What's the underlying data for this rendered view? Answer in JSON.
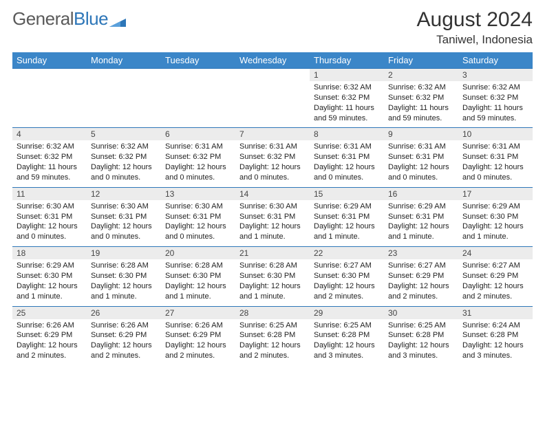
{
  "logo": {
    "part1": "General",
    "part2": "Blue"
  },
  "title": "August 2024",
  "location": "Taniwel, Indonesia",
  "weekdays": [
    "Sunday",
    "Monday",
    "Tuesday",
    "Wednesday",
    "Thursday",
    "Friday",
    "Saturday"
  ],
  "colors": {
    "header_bg": "#3b86c8",
    "header_text": "#ffffff",
    "daynum_bg": "#ececec",
    "rule": "#2d76b8",
    "logo_gray": "#5a5a5a",
    "logo_blue": "#2d76b8"
  },
  "weeks": [
    [
      {
        "empty": true
      },
      {
        "empty": true
      },
      {
        "empty": true
      },
      {
        "empty": true
      },
      {
        "day": "1",
        "sunrise": "Sunrise: 6:32 AM",
        "sunset": "Sunset: 6:32 PM",
        "daylight": "Daylight: 11 hours and 59 minutes."
      },
      {
        "day": "2",
        "sunrise": "Sunrise: 6:32 AM",
        "sunset": "Sunset: 6:32 PM",
        "daylight": "Daylight: 11 hours and 59 minutes."
      },
      {
        "day": "3",
        "sunrise": "Sunrise: 6:32 AM",
        "sunset": "Sunset: 6:32 PM",
        "daylight": "Daylight: 11 hours and 59 minutes."
      }
    ],
    [
      {
        "day": "4",
        "sunrise": "Sunrise: 6:32 AM",
        "sunset": "Sunset: 6:32 PM",
        "daylight": "Daylight: 11 hours and 59 minutes."
      },
      {
        "day": "5",
        "sunrise": "Sunrise: 6:32 AM",
        "sunset": "Sunset: 6:32 PM",
        "daylight": "Daylight: 12 hours and 0 minutes."
      },
      {
        "day": "6",
        "sunrise": "Sunrise: 6:31 AM",
        "sunset": "Sunset: 6:32 PM",
        "daylight": "Daylight: 12 hours and 0 minutes."
      },
      {
        "day": "7",
        "sunrise": "Sunrise: 6:31 AM",
        "sunset": "Sunset: 6:32 PM",
        "daylight": "Daylight: 12 hours and 0 minutes."
      },
      {
        "day": "8",
        "sunrise": "Sunrise: 6:31 AM",
        "sunset": "Sunset: 6:31 PM",
        "daylight": "Daylight: 12 hours and 0 minutes."
      },
      {
        "day": "9",
        "sunrise": "Sunrise: 6:31 AM",
        "sunset": "Sunset: 6:31 PM",
        "daylight": "Daylight: 12 hours and 0 minutes."
      },
      {
        "day": "10",
        "sunrise": "Sunrise: 6:31 AM",
        "sunset": "Sunset: 6:31 PM",
        "daylight": "Daylight: 12 hours and 0 minutes."
      }
    ],
    [
      {
        "day": "11",
        "sunrise": "Sunrise: 6:30 AM",
        "sunset": "Sunset: 6:31 PM",
        "daylight": "Daylight: 12 hours and 0 minutes."
      },
      {
        "day": "12",
        "sunrise": "Sunrise: 6:30 AM",
        "sunset": "Sunset: 6:31 PM",
        "daylight": "Daylight: 12 hours and 0 minutes."
      },
      {
        "day": "13",
        "sunrise": "Sunrise: 6:30 AM",
        "sunset": "Sunset: 6:31 PM",
        "daylight": "Daylight: 12 hours and 0 minutes."
      },
      {
        "day": "14",
        "sunrise": "Sunrise: 6:30 AM",
        "sunset": "Sunset: 6:31 PM",
        "daylight": "Daylight: 12 hours and 1 minute."
      },
      {
        "day": "15",
        "sunrise": "Sunrise: 6:29 AM",
        "sunset": "Sunset: 6:31 PM",
        "daylight": "Daylight: 12 hours and 1 minute."
      },
      {
        "day": "16",
        "sunrise": "Sunrise: 6:29 AM",
        "sunset": "Sunset: 6:31 PM",
        "daylight": "Daylight: 12 hours and 1 minute."
      },
      {
        "day": "17",
        "sunrise": "Sunrise: 6:29 AM",
        "sunset": "Sunset: 6:30 PM",
        "daylight": "Daylight: 12 hours and 1 minute."
      }
    ],
    [
      {
        "day": "18",
        "sunrise": "Sunrise: 6:29 AM",
        "sunset": "Sunset: 6:30 PM",
        "daylight": "Daylight: 12 hours and 1 minute."
      },
      {
        "day": "19",
        "sunrise": "Sunrise: 6:28 AM",
        "sunset": "Sunset: 6:30 PM",
        "daylight": "Daylight: 12 hours and 1 minute."
      },
      {
        "day": "20",
        "sunrise": "Sunrise: 6:28 AM",
        "sunset": "Sunset: 6:30 PM",
        "daylight": "Daylight: 12 hours and 1 minute."
      },
      {
        "day": "21",
        "sunrise": "Sunrise: 6:28 AM",
        "sunset": "Sunset: 6:30 PM",
        "daylight": "Daylight: 12 hours and 1 minute."
      },
      {
        "day": "22",
        "sunrise": "Sunrise: 6:27 AM",
        "sunset": "Sunset: 6:30 PM",
        "daylight": "Daylight: 12 hours and 2 minutes."
      },
      {
        "day": "23",
        "sunrise": "Sunrise: 6:27 AM",
        "sunset": "Sunset: 6:29 PM",
        "daylight": "Daylight: 12 hours and 2 minutes."
      },
      {
        "day": "24",
        "sunrise": "Sunrise: 6:27 AM",
        "sunset": "Sunset: 6:29 PM",
        "daylight": "Daylight: 12 hours and 2 minutes."
      }
    ],
    [
      {
        "day": "25",
        "sunrise": "Sunrise: 6:26 AM",
        "sunset": "Sunset: 6:29 PM",
        "daylight": "Daylight: 12 hours and 2 minutes."
      },
      {
        "day": "26",
        "sunrise": "Sunrise: 6:26 AM",
        "sunset": "Sunset: 6:29 PM",
        "daylight": "Daylight: 12 hours and 2 minutes."
      },
      {
        "day": "27",
        "sunrise": "Sunrise: 6:26 AM",
        "sunset": "Sunset: 6:29 PM",
        "daylight": "Daylight: 12 hours and 2 minutes."
      },
      {
        "day": "28",
        "sunrise": "Sunrise: 6:25 AM",
        "sunset": "Sunset: 6:28 PM",
        "daylight": "Daylight: 12 hours and 2 minutes."
      },
      {
        "day": "29",
        "sunrise": "Sunrise: 6:25 AM",
        "sunset": "Sunset: 6:28 PM",
        "daylight": "Daylight: 12 hours and 3 minutes."
      },
      {
        "day": "30",
        "sunrise": "Sunrise: 6:25 AM",
        "sunset": "Sunset: 6:28 PM",
        "daylight": "Daylight: 12 hours and 3 minutes."
      },
      {
        "day": "31",
        "sunrise": "Sunrise: 6:24 AM",
        "sunset": "Sunset: 6:28 PM",
        "daylight": "Daylight: 12 hours and 3 minutes."
      }
    ]
  ]
}
